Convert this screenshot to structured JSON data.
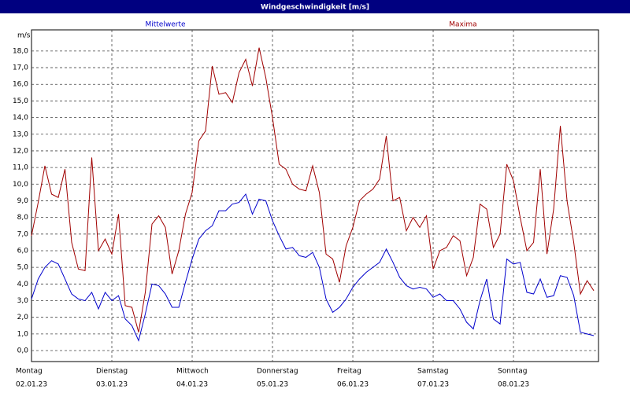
{
  "chart_data": {
    "type": "line",
    "title": "Windgeschwindigkeit [m/s]",
    "y_unit": "m/s",
    "x": [
      0,
      2,
      4,
      6,
      8,
      10,
      12,
      14,
      16,
      18,
      20,
      22,
      24,
      26,
      28,
      30,
      32,
      34,
      36,
      38,
      40,
      42,
      44,
      46,
      48,
      50,
      52,
      54,
      56,
      58,
      60,
      62,
      64,
      66,
      68,
      70,
      72,
      74,
      76,
      78,
      80,
      82,
      84,
      86,
      88,
      90,
      92,
      94,
      96,
      98,
      100,
      102,
      104,
      106,
      108,
      110,
      112,
      114,
      116,
      118,
      120,
      122,
      124,
      126,
      128,
      130,
      132,
      134,
      136,
      138,
      140,
      142,
      144,
      146,
      148,
      150,
      152,
      154,
      156,
      158,
      160,
      162,
      164,
      166,
      168
    ],
    "xlim": [
      0,
      169.4
    ],
    "xticks": [
      {
        "value": 0,
        "label": "Montag"
      },
      {
        "value": 24,
        "label": "Dienstag"
      },
      {
        "value": 48,
        "label": "Mittwoch"
      },
      {
        "value": 72,
        "label": "Donnerstag"
      },
      {
        "value": 96,
        "label": "Freitag"
      },
      {
        "value": 120,
        "label": "Samstag"
      },
      {
        "value": 144,
        "label": "Sonntag"
      }
    ],
    "xtick_dates": [
      "02.01.23",
      "03.01.23",
      "04.01.23",
      "05.01.23",
      "06.01.23",
      "07.01.23",
      "08.01.23"
    ],
    "ylim": [
      -0.66,
      19.27
    ],
    "yticks": [
      {
        "value": 0,
        "label": "0,0"
      },
      {
        "value": 1,
        "label": "1,0"
      },
      {
        "value": 2,
        "label": "2,0"
      },
      {
        "value": 3,
        "label": "3,0"
      },
      {
        "value": 4,
        "label": "4,0"
      },
      {
        "value": 5,
        "label": "5,0"
      },
      {
        "value": 6,
        "label": "6,0"
      },
      {
        "value": 7,
        "label": "7,0"
      },
      {
        "value": 8,
        "label": "8,0"
      },
      {
        "value": 9,
        "label": "9,0"
      },
      {
        "value": 10,
        "label": "10,0"
      },
      {
        "value": 11,
        "label": "11,0"
      },
      {
        "value": 12,
        "label": "12,0"
      },
      {
        "value": 13,
        "label": "13,0"
      },
      {
        "value": 14,
        "label": "14,0"
      },
      {
        "value": 15,
        "label": "15,0"
      },
      {
        "value": 16,
        "label": "16,0"
      },
      {
        "value": 17,
        "label": "17,0"
      },
      {
        "value": 18,
        "label": "18,0"
      }
    ],
    "grid": true,
    "series": [
      {
        "name": "Mittelwerte",
        "color": "#0000cc",
        "values": [
          3.1,
          4.3,
          5.0,
          5.4,
          5.2,
          4.3,
          3.4,
          3.1,
          3.0,
          3.5,
          2.5,
          3.5,
          3.0,
          3.3,
          1.9,
          1.5,
          0.6,
          2.2,
          4.0,
          3.9,
          3.4,
          2.6,
          2.6,
          4.1,
          5.5,
          6.7,
          7.2,
          7.5,
          8.4,
          8.4,
          8.8,
          8.9,
          9.4,
          8.2,
          9.1,
          9.0,
          7.8,
          6.9,
          6.1,
          6.2,
          5.7,
          5.6,
          5.9,
          5.0,
          3.1,
          2.3,
          2.6,
          3.1,
          3.8,
          4.3,
          4.7,
          5.0,
          5.3,
          6.1,
          5.3,
          4.4,
          3.9,
          3.7,
          3.8,
          3.7,
          3.2,
          3.4,
          3.0,
          3.0,
          2.5,
          1.7,
          1.3,
          3.0,
          4.3,
          1.9,
          1.6,
          5.5,
          5.2,
          5.3,
          3.5,
          3.4,
          4.3,
          3.2,
          3.3,
          4.5,
          4.4,
          3.3,
          1.1,
          1.0,
          0.9
        ]
      },
      {
        "name": "Maxima",
        "color": "#a00000",
        "values": [
          6.9,
          8.9,
          11.1,
          9.4,
          9.2,
          10.9,
          6.5,
          4.9,
          4.8,
          11.6,
          6.0,
          6.7,
          5.8,
          8.2,
          2.7,
          2.6,
          1.1,
          3.5,
          7.6,
          8.1,
          7.4,
          4.6,
          6.0,
          8.2,
          9.5,
          12.6,
          13.2,
          17.1,
          15.4,
          15.5,
          14.9,
          16.7,
          17.5,
          15.9,
          18.2,
          16.4,
          14.0,
          11.2,
          10.9,
          10.0,
          9.7,
          9.6,
          11.1,
          9.5,
          5.8,
          5.5,
          4.1,
          6.3,
          7.4,
          9.0,
          9.4,
          9.7,
          10.3,
          12.9,
          9.0,
          9.2,
          7.2,
          8.0,
          7.4,
          8.1,
          4.9,
          6.0,
          6.2,
          6.9,
          6.6,
          4.5,
          5.6,
          8.8,
          8.5,
          6.2,
          7.0,
          11.2,
          10.2,
          8.0,
          6.0,
          6.5,
          10.9,
          5.8,
          8.5,
          13.5,
          9.0,
          6.5,
          3.4,
          4.2,
          3.6
        ]
      }
    ]
  }
}
